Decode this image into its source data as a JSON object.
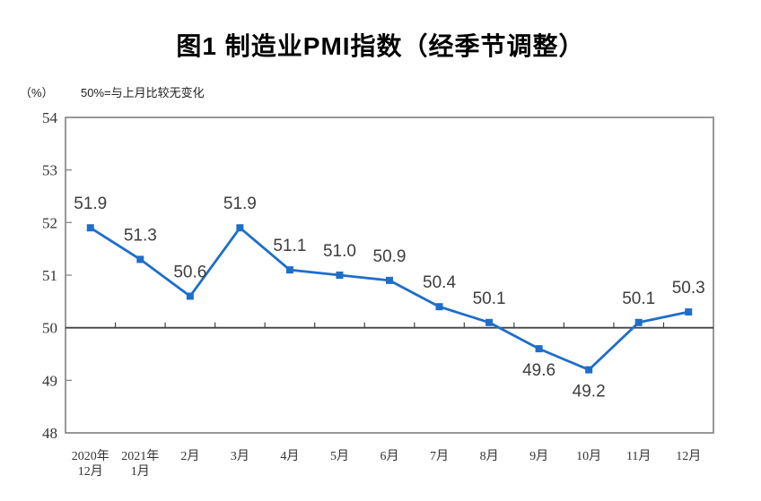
{
  "page": {
    "title": "图1 制造业PMI指数（经季节调整）",
    "unit_label": "（%）",
    "note": "50%=与上月比较无变化"
  },
  "chart_data": {
    "type": "line",
    "title": "图1 制造业PMI指数（经季节调整）",
    "unit_label": "（%）",
    "annotation": "50%=与上月比较无变化",
    "categories": [
      [
        "2020年",
        "12月"
      ],
      [
        "2021年",
        "1月"
      ],
      [
        "2月"
      ],
      [
        "3月"
      ],
      [
        "4月"
      ],
      [
        "5月"
      ],
      [
        "6月"
      ],
      [
        "7月"
      ],
      [
        "8月"
      ],
      [
        "9月"
      ],
      [
        "10月"
      ],
      [
        "11月"
      ],
      [
        "12月"
      ]
    ],
    "series": [
      {
        "name": "制造业PMI",
        "values": [
          51.9,
          51.3,
          50.6,
          51.9,
          51.1,
          51.0,
          50.9,
          50.4,
          50.1,
          49.6,
          49.2,
          50.1,
          50.3
        ],
        "labels": [
          "51.9",
          "51.3",
          "50.6",
          "51.9",
          "51.1",
          "51.0",
          "50.9",
          "50.4",
          "50.1",
          "49.6",
          "49.2",
          "50.1",
          "50.3"
        ],
        "label_positions": [
          "above",
          "above",
          "above",
          "above",
          "above",
          "above",
          "above",
          "above",
          "above",
          "below",
          "below",
          "above",
          "above"
        ]
      }
    ],
    "ylim": [
      48,
      54
    ],
    "yticks": [
      48,
      49,
      50,
      51,
      52,
      53,
      54
    ],
    "reference_line_y": 50,
    "grid": false,
    "legend_position": "none",
    "marker_shape": "square",
    "colors": {
      "line": "#1e6ec8",
      "frame": "#7f7f7f",
      "reference_line": "#444444",
      "axis_text": "#333333",
      "data_label_text": "#3d3d3d",
      "title_text": "#000000"
    }
  }
}
